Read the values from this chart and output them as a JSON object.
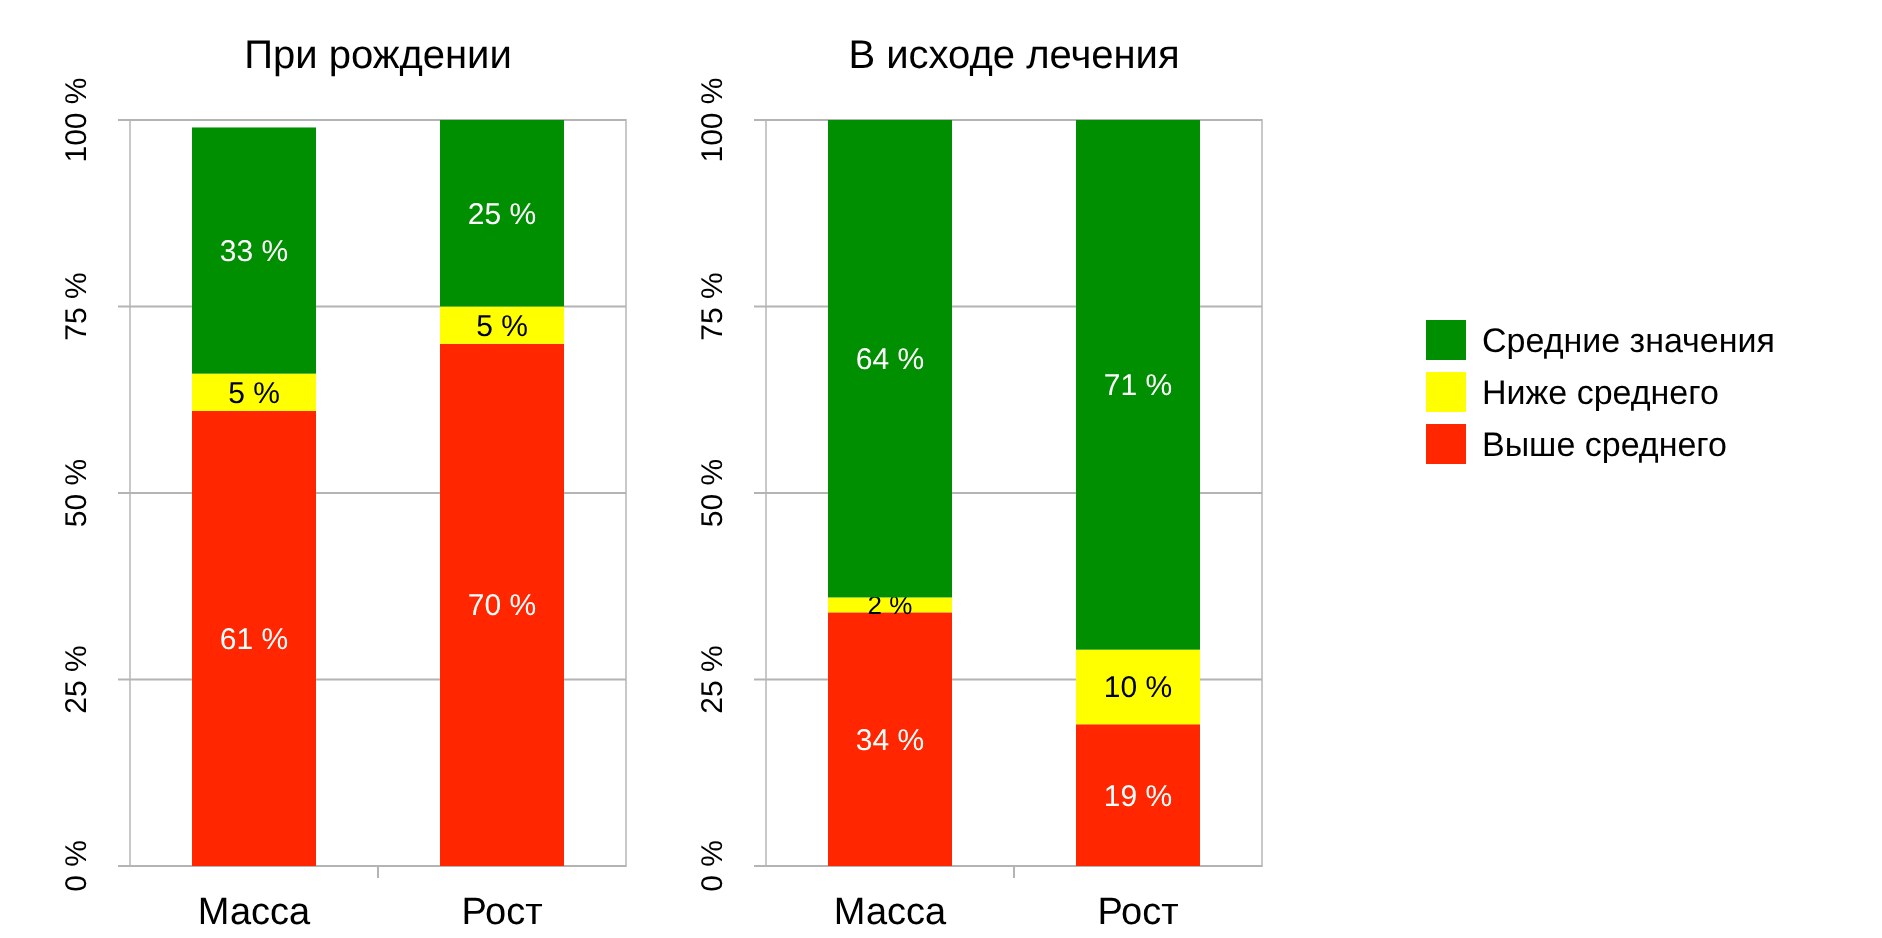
{
  "chart_data": [
    {
      "type": "bar",
      "title": "При рождении",
      "categories": [
        "Масса",
        "Рост"
      ],
      "stacked": true,
      "ylim": [
        0,
        100
      ],
      "yticks": [
        {
          "value": 0,
          "label": "0 %"
        },
        {
          "value": 25,
          "label": "25 %"
        },
        {
          "value": 50,
          "label": "50 %"
        },
        {
          "value": 75,
          "label": "75 %"
        },
        {
          "value": 100,
          "label": "100 %"
        }
      ],
      "grid": "y",
      "legend": false,
      "series": [
        {
          "color": "#ff2600",
          "values": [
            61,
            70
          ],
          "value_labels": [
            "61 %",
            "70 %"
          ]
        },
        {
          "color": "#ffff00",
          "values": [
            5,
            5
          ],
          "value_labels": [
            "5 %",
            "5 %"
          ]
        },
        {
          "color": "#008f00",
          "values": [
            33,
            25
          ],
          "value_labels": [
            "33 %",
            "25 %"
          ]
        }
      ]
    },
    {
      "type": "bar",
      "title": "В исходе лечения",
      "categories": [
        "Масса",
        "Рост"
      ],
      "stacked": true,
      "ylim": [
        0,
        100
      ],
      "yticks": [
        {
          "value": 0,
          "label": "0 %"
        },
        {
          "value": 25,
          "label": "25 %"
        },
        {
          "value": 50,
          "label": "50 %"
        },
        {
          "value": 75,
          "label": "75 %"
        },
        {
          "value": 100,
          "label": "100 %"
        }
      ],
      "grid": "y",
      "legend": "right",
      "series": [
        {
          "name": "Выше среднего",
          "color": "#ff2600",
          "values": [
            34,
            19
          ],
          "value_labels": [
            "34 %",
            "19 %"
          ]
        },
        {
          "name": "Ниже среднего",
          "color": "#ffff00",
          "values": [
            2,
            10
          ],
          "value_labels": [
            "2 %",
            "10 %"
          ]
        },
        {
          "name": "Средние значения",
          "color": "#008f00",
          "values": [
            64,
            71
          ],
          "value_labels": [
            "64 %",
            "71 %"
          ]
        }
      ]
    }
  ]
}
